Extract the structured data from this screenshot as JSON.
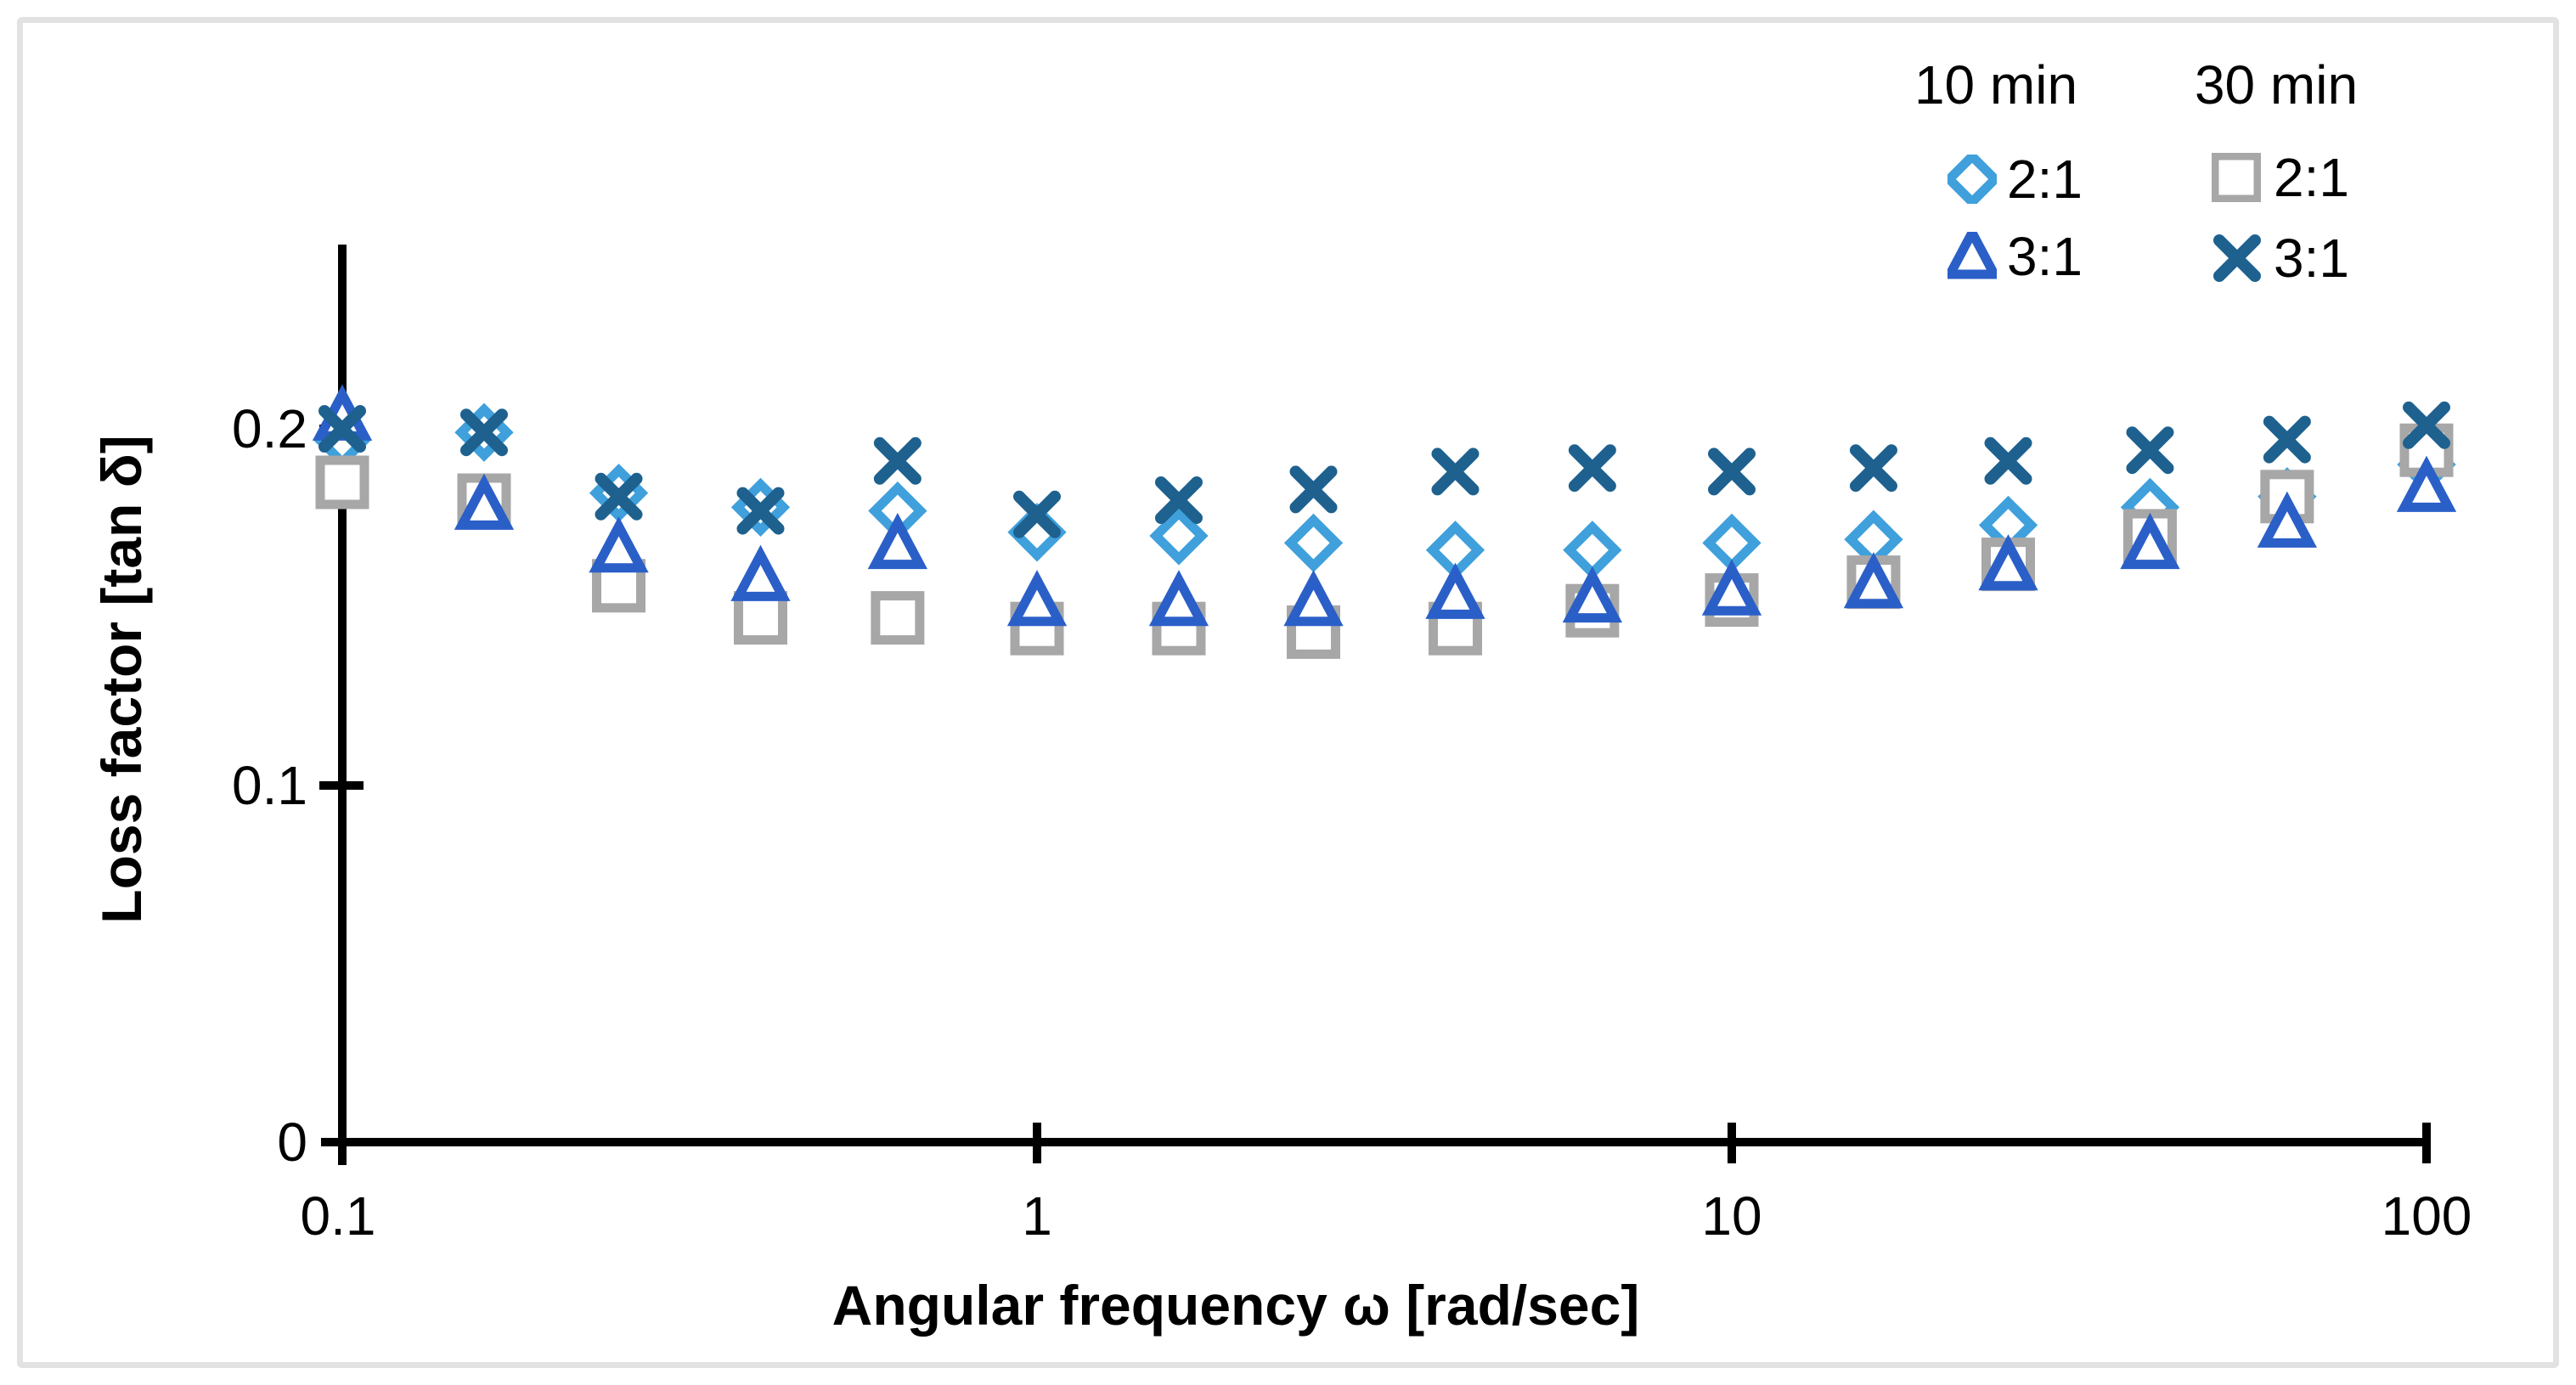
{
  "figure": {
    "background": "#FFFFFF",
    "border_color": "#E2E2E2",
    "axis_color": "#000000",
    "text_color": "#000000"
  },
  "chart_data": {
    "type": "scatter",
    "title": "",
    "x_axis": {
      "label": "Angular frequency ω [rad/sec]",
      "scale": "log",
      "range": [
        0.1,
        100
      ],
      "ticks": [
        0.1,
        1,
        10,
        100
      ],
      "tick_labels": [
        "0.1",
        "1",
        "10",
        "100"
      ]
    },
    "y_axis": {
      "label": "Loss factor [tan δ]",
      "scale": "linear",
      "range": [
        0,
        0.25
      ],
      "ticks": [
        0,
        0.1,
        0.2
      ],
      "tick_labels": [
        "0",
        "0.1",
        "0.2"
      ]
    },
    "grid": "off",
    "legend": {
      "position": "top-right",
      "headers": [
        "10 min",
        "30 min"
      ],
      "items": [
        {
          "marker": "diamond",
          "label": "2:1",
          "group": "10 min"
        },
        {
          "marker": "square",
          "label": "2:1",
          "group": "30 min"
        },
        {
          "marker": "triangle",
          "label": "3:1",
          "group": "10 min"
        },
        {
          "marker": "x",
          "label": "3:1",
          "group": "30 min"
        }
      ]
    },
    "x": [
      0.1,
      0.16,
      0.25,
      0.4,
      0.63,
      1,
      1.6,
      2.5,
      4,
      6.3,
      10,
      16,
      25,
      40,
      63,
      100
    ],
    "series": [
      {
        "name": "10 min 2:1",
        "marker": "diamond",
        "color": "#3FA0DC",
        "values": [
          0.197,
          0.199,
          0.182,
          0.178,
          0.177,
          0.171,
          0.17,
          0.168,
          0.166,
          0.166,
          0.168,
          0.169,
          0.173,
          0.178,
          0.181,
          0.19
        ]
      },
      {
        "name": "30 min 2:1",
        "marker": "square",
        "color": "#A7A7A7",
        "values": [
          0.185,
          0.18,
          0.156,
          0.147,
          0.147,
          0.144,
          0.144,
          0.143,
          0.144,
          0.149,
          0.152,
          0.157,
          0.162,
          0.17,
          0.181,
          0.194
        ]
      },
      {
        "name": "10 min 3:1",
        "marker": "triangle",
        "color": "#2B5FC8",
        "values": [
          0.203,
          0.178,
          0.166,
          0.158,
          0.167,
          0.151,
          0.151,
          0.151,
          0.153,
          0.152,
          0.154,
          0.156,
          0.161,
          0.167,
          0.173,
          0.183
        ]
      },
      {
        "name": "30 min 3:1",
        "marker": "x",
        "color": "#1E618F",
        "values": [
          0.2,
          0.199,
          0.181,
          0.177,
          0.191,
          0.176,
          0.18,
          0.183,
          0.188,
          0.189,
          0.188,
          0.189,
          0.191,
          0.194,
          0.197,
          0.201
        ]
      }
    ]
  }
}
